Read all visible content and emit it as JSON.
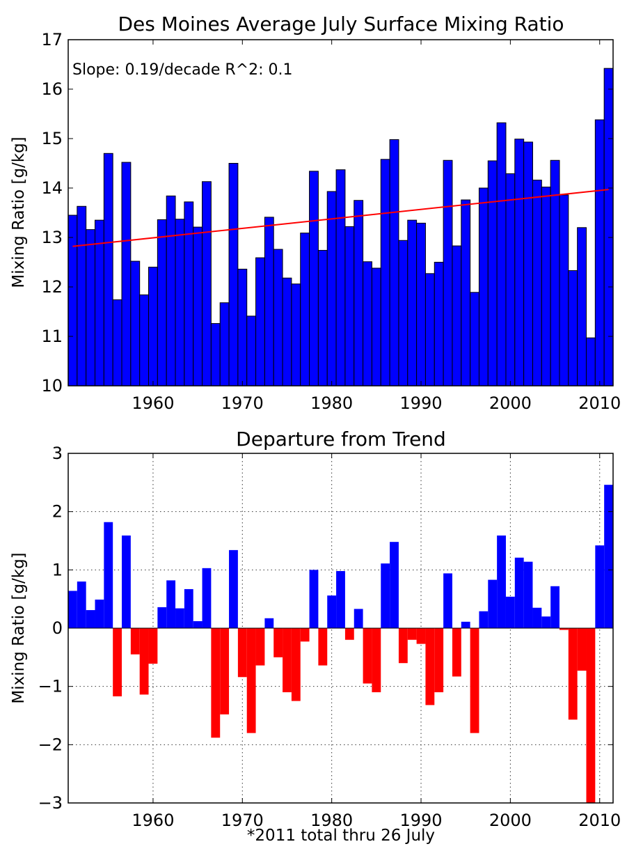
{
  "chart_data": [
    {
      "type": "bar",
      "title": "Des Moines Average July Surface Mixing Ratio",
      "xlabel": "",
      "ylabel": "Mixing Ratio [g/kg]",
      "ylim": [
        10,
        17
      ],
      "xlim": [
        1950.5,
        2011.5
      ],
      "xticks": [
        "1960",
        "1970",
        "1980",
        "1990",
        "2000",
        "2010"
      ],
      "yticks": [
        "10",
        "11",
        "12",
        "13",
        "14",
        "15",
        "16",
        "17"
      ],
      "grid": false,
      "annotation": "Slope: 0.19/decade R^2: 0.1",
      "bar_color": "#0000ff",
      "trend_color": "#ff0000",
      "trend": {
        "x": [
          1951,
          2011
        ],
        "y": [
          12.82,
          13.97
        ]
      },
      "x": [
        1951,
        1952,
        1953,
        1954,
        1955,
        1956,
        1957,
        1958,
        1959,
        1960,
        1961,
        1962,
        1963,
        1964,
        1965,
        1966,
        1967,
        1968,
        1969,
        1970,
        1971,
        1972,
        1973,
        1974,
        1975,
        1976,
        1977,
        1978,
        1979,
        1980,
        1981,
        1982,
        1983,
        1984,
        1985,
        1986,
        1987,
        1988,
        1989,
        1990,
        1991,
        1992,
        1993,
        1994,
        1995,
        1996,
        1997,
        1998,
        1999,
        2000,
        2001,
        2002,
        2003,
        2004,
        2005,
        2006,
        2007,
        2008,
        2009,
        2010,
        2011
      ],
      "values": [
        13.45,
        13.63,
        13.16,
        13.35,
        14.7,
        11.74,
        14.52,
        12.52,
        11.84,
        12.4,
        13.36,
        13.84,
        13.37,
        13.72,
        13.21,
        14.13,
        11.26,
        11.68,
        14.5,
        12.36,
        11.41,
        12.59,
        13.41,
        12.76,
        12.18,
        12.06,
        13.09,
        14.34,
        12.74,
        13.93,
        14.37,
        13.22,
        13.75,
        12.51,
        12.38,
        14.58,
        14.98,
        12.94,
        13.35,
        13.29,
        12.27,
        12.5,
        14.56,
        12.83,
        13.76,
        11.89,
        14.0,
        14.55,
        15.32,
        14.29,
        14.99,
        14.93,
        14.16,
        14.02,
        14.56,
        13.86,
        12.33,
        13.2,
        10.97,
        15.38,
        16.42
      ]
    },
    {
      "type": "bar",
      "title": "Departure from Trend",
      "xlabel": "*2011 total thru 26 July",
      "ylabel": "Mixing Ratio [g/kg]",
      "ylim": [
        -3,
        3
      ],
      "xlim": [
        1950.5,
        2011.5
      ],
      "xticks": [
        "1960",
        "1970",
        "1980",
        "1990",
        "2000",
        "2010"
      ],
      "yticks": [
        "−3",
        "−2",
        "−1",
        "0",
        "1",
        "2",
        "3"
      ],
      "grid": true,
      "positive_color": "#0000ff",
      "negative_color": "#ff0000",
      "x": [
        1951,
        1952,
        1953,
        1954,
        1955,
        1956,
        1957,
        1958,
        1959,
        1960,
        1961,
        1962,
        1963,
        1964,
        1965,
        1966,
        1967,
        1968,
        1969,
        1970,
        1971,
        1972,
        1973,
        1974,
        1975,
        1976,
        1977,
        1978,
        1979,
        1980,
        1981,
        1982,
        1983,
        1984,
        1985,
        1986,
        1987,
        1988,
        1989,
        1990,
        1991,
        1992,
        1993,
        1994,
        1995,
        1996,
        1997,
        1998,
        1999,
        2000,
        2001,
        2002,
        2003,
        2004,
        2005,
        2006,
        2007,
        2008,
        2009,
        2010,
        2011
      ],
      "values": [
        0.64,
        0.8,
        0.31,
        0.49,
        1.82,
        -1.17,
        1.59,
        -0.45,
        -1.14,
        -0.61,
        0.36,
        0.82,
        0.34,
        0.67,
        0.12,
        1.03,
        -1.88,
        -1.48,
        1.34,
        -0.84,
        -1.8,
        -0.64,
        0.17,
        -0.5,
        -1.1,
        -1.25,
        -0.23,
        1.0,
        -0.64,
        0.56,
        0.98,
        -0.2,
        0.33,
        -0.95,
        -1.1,
        1.11,
        1.48,
        -0.6,
        -0.2,
        -0.27,
        -1.32,
        -1.1,
        0.94,
        -0.83,
        0.11,
        -1.8,
        0.29,
        0.83,
        1.59,
        0.54,
        1.21,
        1.14,
        0.35,
        0.2,
        0.72,
        -0.03,
        -1.57,
        -0.73,
        -3.0,
        1.42,
        2.46
      ]
    }
  ]
}
